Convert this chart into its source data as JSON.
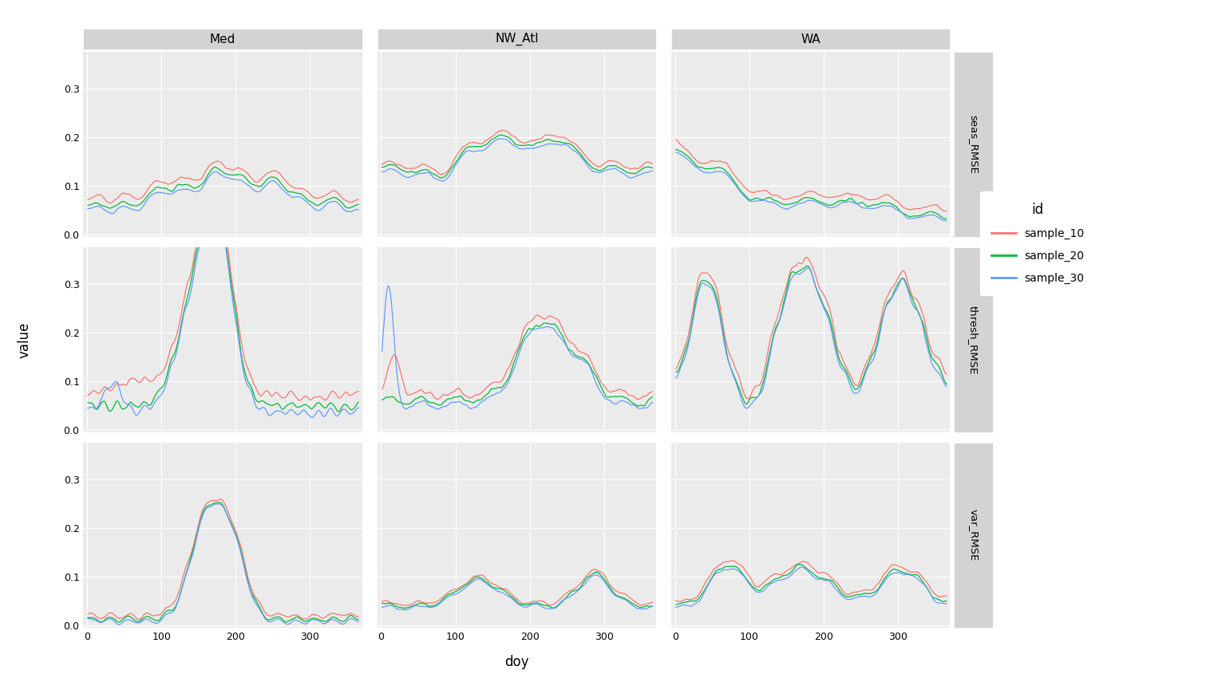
{
  "cols": [
    "Med",
    "NW_Atl",
    "WA"
  ],
  "rows": [
    "seas_RMSE",
    "thresh_RMSE",
    "var_RMSE"
  ],
  "series": [
    "sample_10",
    "sample_20",
    "sample_30"
  ],
  "colors": [
    "#F8766D",
    "#00BA38",
    "#619CFF"
  ],
  "xlabel": "doy",
  "ylabel": "value",
  "legend_title": "id",
  "ylim": [
    -0.005,
    0.375
  ],
  "yticks": [
    0.0,
    0.1,
    0.2,
    0.3
  ],
  "ytick_labels": [
    "0.0",
    "0.1",
    "0.2",
    "0.3"
  ],
  "xlim": [
    -5,
    370
  ],
  "xticks": [
    0,
    100,
    200,
    300
  ],
  "xtick_labels": [
    "0",
    "100",
    "200",
    "300"
  ],
  "bg_color": "#EBEBEB",
  "grid_color": "#FFFFFF",
  "strip_bg": "#D3D3D3",
  "linewidth": 0.9,
  "figsize": [
    15.36,
    8.65
  ],
  "dpi": 100
}
